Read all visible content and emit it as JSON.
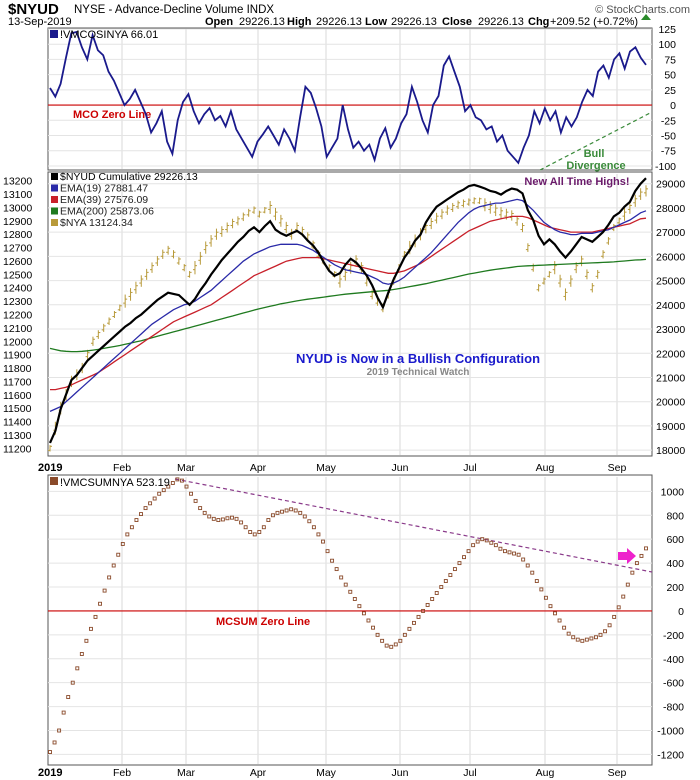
{
  "header": {
    "symbol": "$NYUD",
    "description": "NYSE - Advance-Decline Volume INDX",
    "brand": "© StockCharts.com",
    "date": "13-Sep-2019",
    "open_label": "Open",
    "open_value": "29226.13",
    "high_label": "High",
    "high_value": "29226.13",
    "low_label": "Low",
    "low_value": "29226.13",
    "close_label": "Close",
    "close_value": "29226.13",
    "chg_label": "Chg",
    "chg_value": "+209.52 (+0.72%)"
  },
  "colors": {
    "mco_line": "#1a1a8c",
    "zero_line": "#cc0000",
    "zero_label": "#cc0000",
    "divergence": "#3a8a3a",
    "nyud": "#000000",
    "ema19": "#2a2aa8",
    "ema39": "#c8202a",
    "ema200": "#1f7a1f",
    "nya": "#b89a3a",
    "mcsum_dots": "#8a4a2a",
    "mcsum_trend": "#8a3a8a",
    "annotation_blue": "#1a1acc",
    "annotation_purple": "#6a1a6a",
    "arrow": "#ee22cc",
    "watermark": "#888888"
  },
  "months": [
    "2019",
    "Feb",
    "Mar",
    "Apr",
    "May",
    "Jun",
    "Jul",
    "Aug",
    "Sep"
  ],
  "panel1": {
    "legend": "!VMCOSINYA 66.01",
    "zero_label": "MCO Zero Line",
    "divergence_label_1": "Bull",
    "divergence_label_2": "Divergence"
  },
  "panel2": {
    "legend": [
      {
        "text": "$NYUD Cumulative 29226.13",
        "color_key": "nyud"
      },
      {
        "text": "EMA(19) 27881.47",
        "color_key": "ema19"
      },
      {
        "text": "EMA(39) 27576.09",
        "color_key": "ema39"
      },
      {
        "text": "EMA(200) 25873.06",
        "color_key": "ema200"
      },
      {
        "text": "$NYA 13124.34",
        "color_key": "nya"
      }
    ],
    "annotation_high": "New All Time Highs!",
    "annotation_main": "NYUD is Now in a Bullish Configuration",
    "annotation_watermark": "2019 Technical Watch"
  },
  "panel3": {
    "legend": "!VMCSUMNYA 523.19",
    "zero_label": "MCSUM Zero Line"
  },
  "chart_data": [
    {
      "type": "line",
      "series": [
        {
          "name": "!VMCOSINYA",
          "values": [
            28,
            14,
            35,
            78,
            118,
            120,
            95,
            75,
            115,
            90,
            82,
            55,
            40,
            20,
            0,
            10,
            25,
            5,
            -15,
            -45,
            -30,
            -10,
            -60,
            -80,
            -25,
            5,
            18,
            -10,
            -30,
            -15,
            -5,
            -25,
            -18,
            -35,
            -10,
            -40,
            -55,
            -70,
            -85,
            -60,
            -48,
            -35,
            -50,
            -65,
            -40,
            -55,
            -75,
            -20,
            30,
            20,
            -5,
            -35,
            -85,
            -70,
            -55,
            0,
            -40,
            -70,
            -60,
            -75,
            -65,
            -90,
            -55,
            -38,
            -70,
            -55,
            -30,
            -15,
            30,
            5,
            -25,
            -45,
            0,
            15,
            65,
            80,
            55,
            30,
            -10,
            0,
            -20,
            -25,
            -40,
            -35,
            -60,
            -50,
            -75,
            -85,
            -95,
            -70,
            -50,
            -10,
            -30,
            -5,
            -25,
            -10,
            -45,
            -20,
            -35,
            -20,
            5,
            25,
            15,
            55,
            65,
            45,
            75,
            85,
            60,
            88,
            95,
            78,
            66
          ]
        }
      ],
      "yticks": [
        125,
        100,
        75,
        50,
        25,
        0,
        -25,
        -50,
        -75,
        -100
      ],
      "ylim": [
        -105,
        125
      ],
      "annotations": [
        "MCO Zero Line",
        "Bull Divergence"
      ]
    },
    {
      "type": "line",
      "series": [
        {
          "name": "$NYUD Cumulative",
          "values": [
            18300,
            18800,
            19700,
            20300,
            20900,
            21100,
            21400,
            21700,
            21900,
            22100,
            22300,
            22500,
            22700,
            22900,
            23100,
            23250,
            23450,
            23600,
            23800,
            24000,
            24200,
            24350,
            24500,
            24450,
            24400,
            24200,
            24000,
            24250,
            24600,
            24900,
            25250,
            25550,
            25850,
            26100,
            26350,
            26600,
            26800,
            27050,
            27200,
            27000,
            27250,
            27450,
            27100,
            26950,
            26850,
            26950,
            27050,
            26900,
            26650,
            26450,
            26150,
            25750,
            25400,
            25200,
            25300,
            25650,
            25900,
            25750,
            25500,
            25200,
            24800,
            24300,
            23900,
            24500,
            25050,
            25500,
            25950,
            26250,
            26650,
            26900,
            27400,
            27750,
            28050,
            28200,
            28350,
            28500,
            28650,
            28750,
            28900,
            28950,
            28880,
            28800,
            28700,
            28650,
            28550,
            28700,
            28800,
            28750,
            28600,
            27900,
            27500,
            26850,
            26500,
            26700,
            26500,
            26200,
            25950,
            26200,
            26500,
            26800,
            26700,
            26600,
            26800,
            27000,
            27300,
            27650,
            27800,
            28050,
            28250,
            28700,
            29000,
            29226
          ]
        },
        {
          "name": "EMA(19)",
          "values": [
            19600,
            19700,
            19800,
            20000,
            20200,
            20400,
            20600,
            20800,
            21000,
            21200,
            21400,
            21600,
            21800,
            22000,
            22200,
            22400,
            22600,
            22800,
            23000,
            23200,
            23350,
            23500,
            23650,
            23800,
            23900,
            24000,
            24050,
            24150,
            24300,
            24450,
            24600,
            24800,
            25000,
            25200,
            25400,
            25600,
            25800,
            25950,
            26100,
            26200,
            26300,
            26400,
            26450,
            26500,
            26500,
            26500,
            26500,
            26450,
            26350,
            26250,
            26100,
            25950,
            25800,
            25650,
            25550,
            25450,
            25400,
            25350,
            25300,
            25250,
            25150,
            25050,
            24900,
            24850,
            24900,
            25000,
            25150,
            25350,
            25550,
            25750,
            25950,
            26150,
            26400,
            26650,
            26900,
            27150,
            27400,
            27600,
            27800,
            27950,
            28050,
            28100,
            28150,
            28200,
            28200,
            28250,
            28300,
            28350,
            28300,
            28100,
            27900,
            27650,
            27400,
            27250,
            27100,
            27000,
            26950,
            26900,
            26900,
            26950,
            26950,
            26950,
            27000,
            27050,
            27100,
            27200,
            27300,
            27400,
            27500,
            27650,
            27800,
            27881
          ]
        },
        {
          "name": "EMA(39)",
          "values": [
            20500,
            20500,
            20550,
            20600,
            20700,
            20800,
            20900,
            21000,
            21100,
            21200,
            21350,
            21500,
            21650,
            21800,
            21950,
            22100,
            22250,
            22400,
            22550,
            22700,
            22850,
            23000,
            23150,
            23300,
            23400,
            23500,
            23600,
            23700,
            23800,
            23900,
            24000,
            24150,
            24300,
            24450,
            24600,
            24750,
            24900,
            25050,
            25200,
            25300,
            25400,
            25500,
            25600,
            25700,
            25800,
            25850,
            25900,
            25950,
            25950,
            25950,
            25950,
            25900,
            25850,
            25800,
            25750,
            25700,
            25650,
            25600,
            25550,
            25500,
            25450,
            25400,
            25350,
            25300,
            25300,
            25350,
            25400,
            25500,
            25600,
            25700,
            25850,
            26000,
            26150,
            26300,
            26450,
            26600,
            26750,
            26900,
            27050,
            27150,
            27250,
            27350,
            27450,
            27500,
            27550,
            27600,
            27650,
            27650,
            27650,
            27600,
            27500,
            27400,
            27300,
            27200,
            27150,
            27100,
            27050,
            27000,
            27000,
            27000,
            27000,
            27000,
            27050,
            27100,
            27150,
            27200,
            27250,
            27300,
            27350,
            27450,
            27550,
            27576
          ]
        },
        {
          "name": "EMA(200)",
          "values": [
            22200,
            22150,
            22100,
            22080,
            22070,
            22070,
            22080,
            22100,
            22130,
            22160,
            22200,
            22240,
            22280,
            22320,
            22370,
            22420,
            22470,
            22520,
            22580,
            22640,
            22700,
            22760,
            22820,
            22880,
            22940,
            23000,
            23060,
            23120,
            23180,
            23240,
            23300,
            23360,
            23420,
            23480,
            23540,
            23600,
            23660,
            23720,
            23780,
            23840,
            23890,
            23940,
            23990,
            24040,
            24080,
            24120,
            24160,
            24200,
            24230,
            24260,
            24290,
            24320,
            24350,
            24380,
            24410,
            24440,
            24460,
            24480,
            24500,
            24520,
            24540,
            24560,
            24580,
            24600,
            24630,
            24670,
            24710,
            24750,
            24790,
            24830,
            24870,
            24920,
            24970,
            25020,
            25070,
            25120,
            25170,
            25220,
            25270,
            25310,
            25350,
            25390,
            25430,
            25460,
            25490,
            25520,
            25550,
            25580,
            25600,
            25610,
            25620,
            25630,
            25640,
            25650,
            25660,
            25670,
            25680,
            25690,
            25700,
            25710,
            25720,
            25730,
            25740,
            25750,
            25760,
            25770,
            25790,
            25810,
            25830,
            25850,
            25860,
            25873
          ]
        },
        {
          "name": "$NYA",
          "values": [
            11200,
            11350,
            11500,
            11600,
            11700,
            11750,
            11800,
            11900,
            12000,
            12050,
            12100,
            12150,
            12200,
            12250,
            12300,
            12350,
            12400,
            12450,
            12500,
            12550,
            12600,
            12650,
            12680,
            12650,
            12600,
            12550,
            12500,
            12550,
            12620,
            12700,
            12750,
            12800,
            12820,
            12850,
            12880,
            12900,
            12930,
            12960,
            12980,
            12950,
            12980,
            13000,
            12950,
            12900,
            12850,
            12800,
            12850,
            12820,
            12780,
            12720,
            12650,
            12600,
            12550,
            12500,
            12450,
            12500,
            12550,
            12600,
            12550,
            12450,
            12350,
            12300,
            12250,
            12350,
            12450,
            12550,
            12650,
            12700,
            12750,
            12800,
            12850,
            12880,
            12920,
            12950,
            12980,
            13000,
            13020,
            13030,
            13040,
            13050,
            13050,
            13020,
            13000,
            12980,
            12960,
            12950,
            12940,
            12900,
            12850,
            12700,
            12550,
            12400,
            12450,
            12500,
            12550,
            12450,
            12350,
            12450,
            12550,
            12600,
            12500,
            12400,
            12500,
            12650,
            12750,
            12850,
            12900,
            12950,
            13000,
            13050,
            13100,
            13124
          ]
        }
      ],
      "yticks_left": [
        13200,
        13100,
        13000,
        12900,
        12800,
        12700,
        12600,
        12500,
        12400,
        12300,
        12200,
        12100,
        12000,
        11900,
        11800,
        11700,
        11600,
        11500,
        11400,
        11300,
        11200
      ],
      "yticks_right": [
        29000,
        28000,
        27000,
        26000,
        25000,
        24000,
        23000,
        22000,
        21000,
        20000,
        19000,
        18000
      ],
      "ylim_right": [
        17800,
        29400
      ],
      "ylim_left": [
        11150,
        13250
      ]
    },
    {
      "type": "scatter",
      "series": [
        {
          "name": "!VMCSUMNYA",
          "values": [
            -1180,
            -1100,
            -1000,
            -850,
            -720,
            -600,
            -480,
            -360,
            -250,
            -150,
            -50,
            60,
            170,
            280,
            380,
            470,
            560,
            640,
            700,
            760,
            810,
            860,
            900,
            940,
            980,
            1010,
            1040,
            1070,
            1100,
            1090,
            1040,
            980,
            920,
            860,
            820,
            790,
            770,
            760,
            765,
            775,
            780,
            770,
            740,
            700,
            660,
            640,
            660,
            700,
            760,
            800,
            820,
            830,
            840,
            850,
            840,
            820,
            790,
            750,
            700,
            640,
            580,
            500,
            420,
            350,
            280,
            220,
            160,
            100,
            40,
            -20,
            -80,
            -140,
            -200,
            -250,
            -290,
            -300,
            -280,
            -250,
            -200,
            -150,
            -100,
            -50,
            0,
            50,
            100,
            150,
            200,
            250,
            300,
            350,
            400,
            450,
            500,
            550,
            580,
            600,
            590,
            570,
            550,
            520,
            500,
            490,
            480,
            470,
            430,
            380,
            320,
            250,
            180,
            110,
            40,
            -20,
            -80,
            -140,
            -190,
            -220,
            -240,
            -250,
            -240,
            -230,
            -220,
            -200,
            -170,
            -120,
            -50,
            30,
            120,
            220,
            320,
            400,
            460,
            523
          ]
        }
      ],
      "yticks": [
        1000,
        800,
        600,
        400,
        200,
        0,
        -200,
        -400,
        -600,
        -800,
        -1000,
        -1200
      ],
      "ylim": [
        -1280,
        1120
      ],
      "annotations": [
        "MCSUM Zero Line"
      ]
    }
  ]
}
